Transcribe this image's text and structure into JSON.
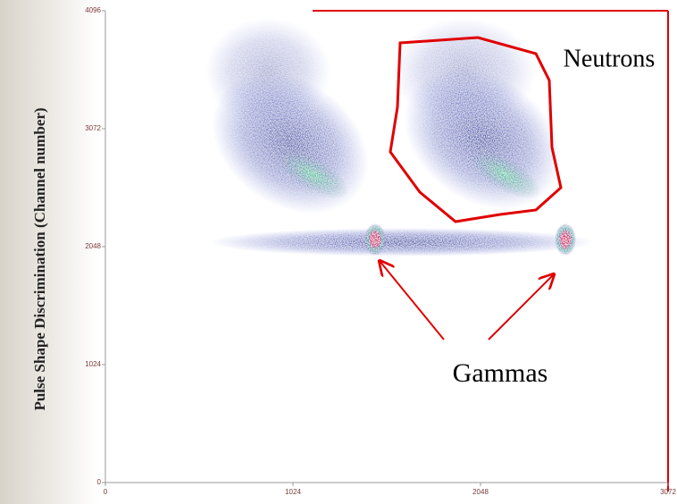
{
  "chart_data": {
    "type": "scatter",
    "ylabel": "Pulse Shape Discrimination (Channel number)",
    "xlim": [
      0,
      3072
    ],
    "ylim": [
      0,
      4096
    ],
    "xticks": [
      0,
      1024,
      2048,
      3072
    ],
    "yticks": [
      0,
      1024,
      2048,
      3072,
      4096
    ],
    "annotations": [
      {
        "text": "Neutrons"
      },
      {
        "text": "Gammas"
      }
    ],
    "color": "#1a2fa0",
    "highlight_color": "#e00000"
  }
}
